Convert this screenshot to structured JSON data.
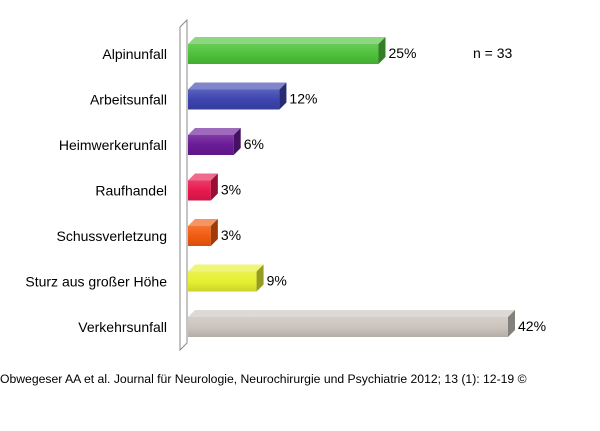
{
  "chart_data": {
    "type": "bar",
    "orientation": "horizontal",
    "categories": [
      "Alpinunfall",
      "Arbeitsunfall",
      "Heimwerkerunfall",
      "Raufhandel",
      "Schussverletzung",
      "Sturz aus großer Höhe",
      "Verkehrsunfall"
    ],
    "values": [
      25,
      12,
      6,
      3,
      3,
      9,
      42
    ],
    "value_labels": [
      "25%",
      "12%",
      "6%",
      "3%",
      "3%",
      "9%",
      "42%"
    ],
    "bar_colors": [
      "#4ec23a",
      "#3d45b0",
      "#6a1a96",
      "#e8194f",
      "#f25b0f",
      "#e6f030",
      "#cbc5be"
    ],
    "annotation": "n = 33",
    "xlim": [
      0,
      42
    ],
    "grid": false,
    "legend": "none",
    "style": "3d"
  },
  "citation": "Obwegeser AA et al. Journal für Neurologie, Neurochirurgie und Psychiatrie 2012; 13 (1): 12-19 ©"
}
